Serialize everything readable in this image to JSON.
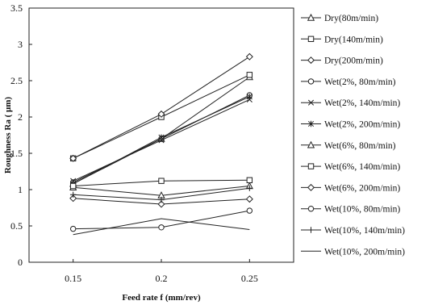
{
  "chart_data": {
    "type": "line",
    "title": "",
    "xlabel": "Feed rate f (mm/rev)",
    "ylabel": "Roughness Ra ( μm)",
    "x": [
      0.15,
      0.2,
      0.25
    ],
    "x_tick_labels": [
      "0.15",
      "0.2",
      "0.25"
    ],
    "xlim": [
      0.125,
      0.275
    ],
    "ylim": [
      0,
      3.5
    ],
    "y_ticks": [
      0,
      0.5,
      1,
      1.5,
      2,
      2.5,
      3,
      3.5
    ],
    "y_tick_labels": [
      "0",
      "0.5",
      "1",
      "1.5",
      "2",
      "2.5",
      "3",
      "3.5"
    ],
    "grid": false,
    "legend_position": "right",
    "series": [
      {
        "name": "Dry(80m/min)",
        "marker": "triangle",
        "values": [
          1.08,
          1.7,
          2.55
        ]
      },
      {
        "name": "Dry(140m/min)",
        "marker": "square",
        "values": [
          1.43,
          2.0,
          2.58
        ]
      },
      {
        "name": "Dry(200m/min)",
        "marker": "diamond",
        "values": [
          1.43,
          2.04,
          2.83
        ]
      },
      {
        "name": "Wet(2%, 80m/min)",
        "marker": "circle",
        "values": [
          1.1,
          1.7,
          2.3
        ]
      },
      {
        "name": "Wet(2%, 140m/min)",
        "marker": "x",
        "values": [
          1.12,
          1.68,
          2.24
        ]
      },
      {
        "name": "Wet(2%, 200m/min)",
        "marker": "star",
        "values": [
          1.08,
          1.72,
          2.28
        ]
      },
      {
        "name": "Wet(6%, 80m/min)",
        "marker": "triangle",
        "values": [
          1.03,
          0.92,
          1.05
        ]
      },
      {
        "name": "Wet(6%, 140m/min)",
        "marker": "square",
        "values": [
          1.05,
          1.12,
          1.13
        ]
      },
      {
        "name": "Wet(6%, 200m/min)",
        "marker": "diamond",
        "values": [
          0.88,
          0.8,
          0.87
        ]
      },
      {
        "name": "Wet(10%, 80m/min)",
        "marker": "circle",
        "values": [
          0.46,
          0.48,
          0.71
        ]
      },
      {
        "name": "Wet(10%, 140m/min)",
        "marker": "plus",
        "values": [
          0.93,
          0.86,
          1.02
        ]
      },
      {
        "name": "Wet(10%, 200m/min)",
        "marker": "none",
        "values": [
          0.38,
          0.6,
          0.45
        ]
      }
    ]
  }
}
